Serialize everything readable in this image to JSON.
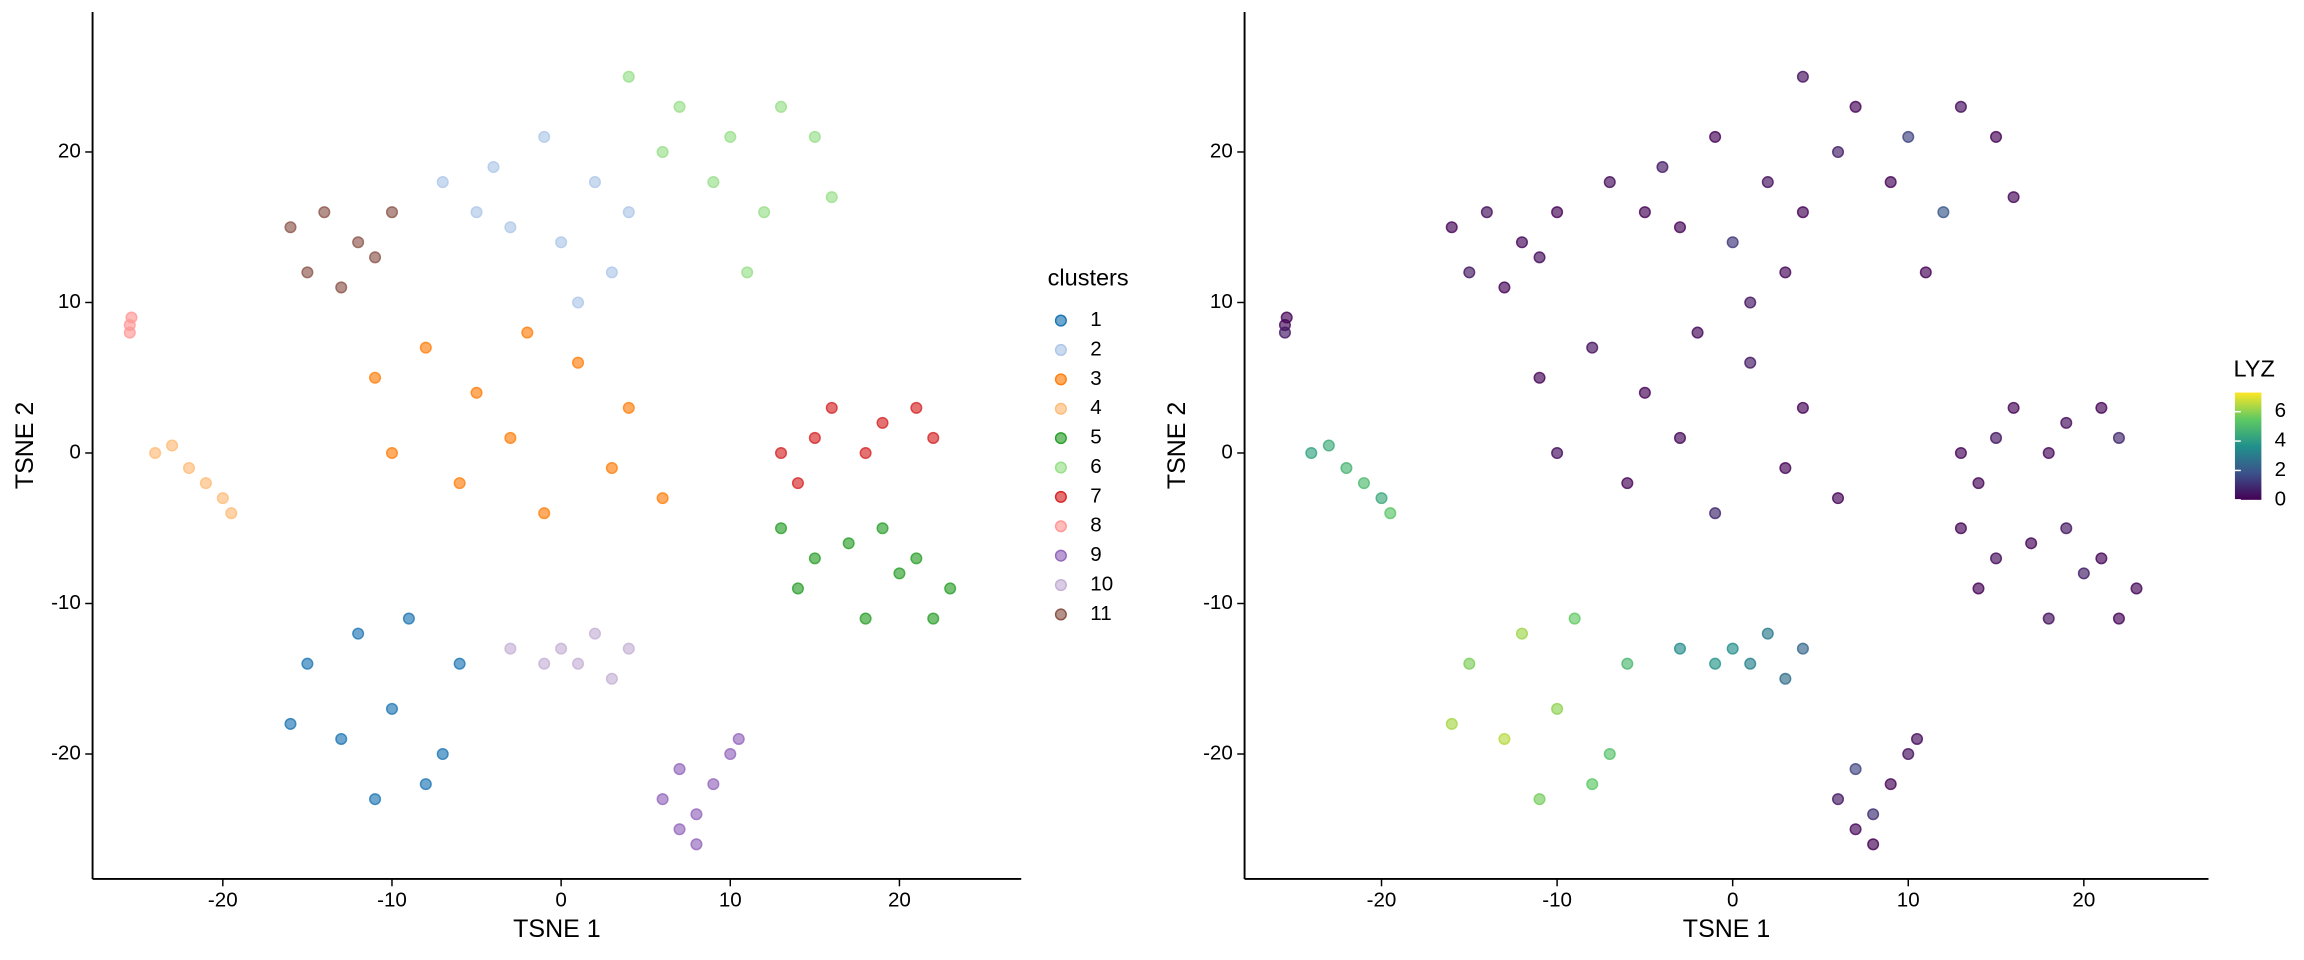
{
  "chart_data": [
    {
      "type": "scatter",
      "xlabel": "TSNE 1",
      "ylabel": "TSNE 2",
      "legend_title": "clusters",
      "xlim": [
        -27.7,
        27.2
      ],
      "ylim": [
        -28.3,
        29.3
      ],
      "xticks": [
        -20,
        -10,
        0,
        10,
        20
      ],
      "yticks": [
        -20,
        -10,
        0,
        10,
        20
      ],
      "series": [
        {
          "name": "1",
          "color": "#1f77b4",
          "x": [
            -15,
            -12,
            -9,
            -6,
            -13,
            -10,
            -7,
            -16,
            -11,
            -8
          ],
          "y": [
            -14,
            -12,
            -11,
            -14,
            -19,
            -17,
            -20,
            -18,
            -23,
            -22
          ]
        },
        {
          "name": "2",
          "color": "#aec7e8",
          "x": [
            -7,
            -4,
            -1,
            2,
            -3,
            0,
            3,
            -5,
            1,
            4
          ],
          "y": [
            18,
            19,
            21,
            18,
            15,
            14,
            12,
            16,
            10,
            16
          ]
        },
        {
          "name": "3",
          "color": "#ff7f0e",
          "x": [
            -11,
            -8,
            -5,
            -2,
            1,
            4,
            -10,
            -6,
            -1,
            3,
            -3,
            6
          ],
          "y": [
            5,
            7,
            4,
            8,
            6,
            3,
            0,
            -2,
            -4,
            -1,
            1,
            -3
          ]
        },
        {
          "name": "4",
          "color": "#ffbb78",
          "x": [
            -24,
            -23,
            -22,
            -21,
            -20,
            -19.5
          ],
          "y": [
            0,
            0.5,
            -1,
            -2,
            -3,
            -4
          ]
        },
        {
          "name": "5",
          "color": "#2ca02c",
          "x": [
            13,
            15,
            17,
            19,
            21,
            23,
            14,
            18,
            22,
            20
          ],
          "y": [
            -5,
            -7,
            -6,
            -5,
            -7,
            -9,
            -9,
            -11,
            -11,
            -8
          ]
        },
        {
          "name": "6",
          "color": "#98df8a",
          "x": [
            4,
            7,
            10,
            13,
            15,
            6,
            9,
            12,
            16,
            11
          ],
          "y": [
            25,
            23,
            21,
            23,
            21,
            20,
            18,
            16,
            17,
            12
          ]
        },
        {
          "name": "7",
          "color": "#d62728",
          "x": [
            13,
            15,
            16,
            19,
            21,
            22,
            14,
            18
          ],
          "y": [
            0,
            1,
            3,
            2,
            3,
            1,
            -2,
            0
          ]
        },
        {
          "name": "8",
          "color": "#ff9896",
          "x": [
            -25.5,
            -25.5,
            -25.4
          ],
          "y": [
            8.5,
            8,
            9
          ]
        },
        {
          "name": "9",
          "color": "#9467bd",
          "x": [
            6,
            7,
            8,
            9,
            10,
            8,
            7,
            10.5
          ],
          "y": [
            -23,
            -25,
            -24,
            -22,
            -20,
            -26,
            -21,
            -19
          ]
        },
        {
          "name": "10",
          "color": "#c5b0d5",
          "x": [
            -3,
            -1,
            1,
            3,
            4,
            2,
            0
          ],
          "y": [
            -13,
            -14,
            -14,
            -15,
            -13,
            -12,
            -13
          ]
        },
        {
          "name": "11",
          "color": "#8c564b",
          "x": [
            -16,
            -14,
            -12,
            -10,
            -15,
            -13,
            -11
          ],
          "y": [
            15,
            16,
            14,
            16,
            12,
            11,
            13
          ]
        }
      ]
    },
    {
      "type": "scatter",
      "xlabel": "TSNE 1",
      "ylabel": "TSNE 2",
      "legend_title": "LYZ",
      "xlim": [
        -27.8,
        27.1
      ],
      "ylim": [
        -28.3,
        29.3
      ],
      "xticks": [
        -20,
        -10,
        0,
        10,
        20
      ],
      "yticks": [
        -20,
        -10,
        0,
        10,
        20
      ],
      "colormap": [
        "#440154",
        "#3b528b",
        "#21918c",
        "#5ec962",
        "#fde725"
      ],
      "clim": [
        0,
        7.3
      ],
      "colorbar_ticks": [
        0,
        2,
        4,
        6
      ],
      "series": [
        {
          "x": [
            -15,
            -12,
            -9,
            -6,
            -13,
            -10,
            -7,
            -16,
            -11,
            -8
          ],
          "y": [
            -14,
            -12,
            -11,
            -14,
            -19,
            -17,
            -20,
            -18,
            -23,
            -22
          ],
          "values": [
            5.8,
            6.2,
            5.5,
            4.9,
            6.5,
            6,
            5.2,
            6.3,
            5.7,
            5.4
          ]
        },
        {
          "x": [
            -7,
            -4,
            -1,
            2,
            -3,
            0,
            3,
            -5,
            1,
            4
          ],
          "y": [
            18,
            19,
            21,
            18,
            15,
            14,
            12,
            16,
            10,
            16
          ],
          "values": [
            0.2,
            0.5,
            0,
            0.3,
            0,
            1.2,
            0.1,
            0,
            0.4,
            0
          ]
        },
        {
          "x": [
            -11,
            -8,
            -5,
            -2,
            1,
            4,
            -10,
            -6,
            -1,
            3,
            -3,
            6
          ],
          "y": [
            5,
            7,
            4,
            8,
            6,
            3,
            0,
            -2,
            -4,
            -1,
            1,
            -3
          ],
          "values": [
            0,
            0.3,
            0,
            0.1,
            0.5,
            0,
            0.2,
            0,
            0.8,
            0,
            0.1,
            0
          ]
        },
        {
          "x": [
            -24,
            -23,
            -22,
            -21,
            -20,
            -19.5
          ],
          "y": [
            0,
            0.5,
            -1,
            -2,
            -3,
            -4
          ],
          "values": [
            4.2,
            4.5,
            4.8,
            5,
            4.4,
            5.3
          ]
        },
        {
          "x": [
            13,
            15,
            17,
            19,
            21,
            23,
            14,
            18,
            22,
            20
          ],
          "y": [
            -5,
            -7,
            -6,
            -5,
            -7,
            -9,
            -9,
            -11,
            -11,
            -8
          ],
          "values": [
            0,
            0.2,
            0,
            0.4,
            0,
            0.1,
            0,
            0.3,
            0,
            0.6
          ]
        },
        {
          "x": [
            4,
            7,
            10,
            13,
            15,
            6,
            9,
            12,
            16,
            11
          ],
          "y": [
            25,
            23,
            21,
            23,
            21,
            20,
            18,
            16,
            17,
            12
          ],
          "values": [
            0.3,
            0,
            1.5,
            0.2,
            0,
            0.6,
            0,
            2,
            0.1,
            0
          ]
        },
        {
          "x": [
            13,
            15,
            16,
            19,
            21,
            22,
            14,
            18
          ],
          "y": [
            0,
            1,
            3,
            2,
            3,
            1,
            -2,
            0
          ],
          "values": [
            0,
            0.4,
            0,
            0.2,
            0,
            0.8,
            0,
            0.1
          ]
        },
        {
          "x": [
            -25.5,
            -25.5,
            -25.4
          ],
          "y": [
            8.5,
            8,
            9
          ],
          "values": [
            0.2,
            0.5,
            0
          ]
        },
        {
          "x": [
            6,
            7,
            8,
            9,
            10,
            8,
            7,
            10.5
          ],
          "y": [
            -23,
            -25,
            -24,
            -22,
            -20,
            -26,
            -21,
            -19
          ],
          "values": [
            0.5,
            0.1,
            1,
            0,
            0.3,
            0,
            1.5,
            0.2
          ]
        },
        {
          "x": [
            -3,
            -1,
            1,
            3,
            4,
            2,
            0
          ],
          "y": [
            -13,
            -14,
            -14,
            -15,
            -13,
            -12,
            -13
          ],
          "values": [
            3.5,
            3.8,
            3.2,
            2.6,
            2.4,
            3,
            3.6
          ]
        },
        {
          "x": [
            -16,
            -14,
            -12,
            -10,
            -15,
            -13,
            -11
          ],
          "y": [
            15,
            16,
            14,
            16,
            12,
            11,
            13
          ],
          "values": [
            0,
            0.3,
            0.1,
            0,
            0.5,
            0,
            0.2
          ]
        }
      ]
    }
  ]
}
